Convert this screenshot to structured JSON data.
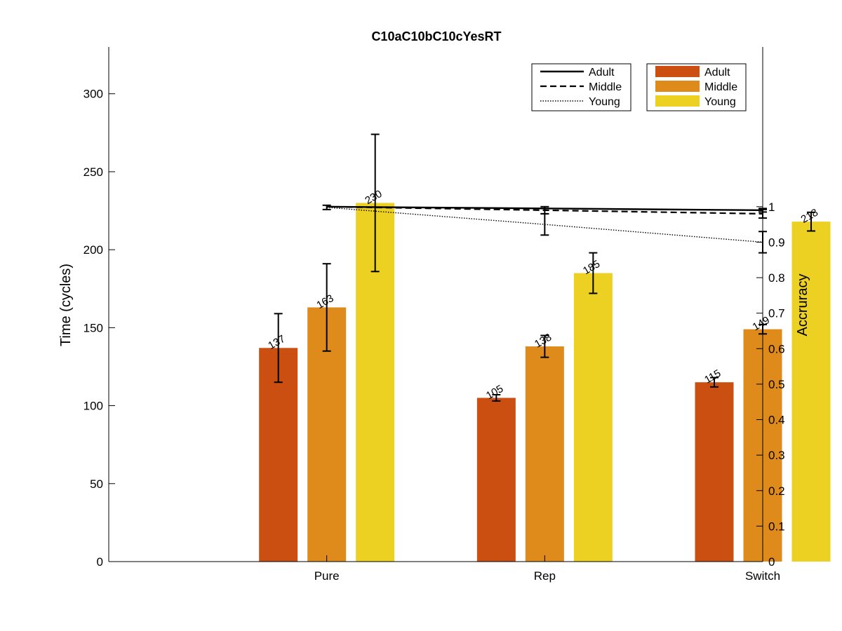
{
  "chart_data": {
    "type": "bar",
    "title": "C10aC10bC10cYesRT",
    "categories": [
      "Pure",
      "Rep",
      "Switch"
    ],
    "ylabel_left": "Time (cycles)",
    "ylabel_right": "Accruracy",
    "ylim_left": [
      0,
      330
    ],
    "ylim_right": [
      0,
      1.45
    ],
    "yticks_left": [
      "0",
      "50",
      "100",
      "150",
      "200",
      "250",
      "300"
    ],
    "yticks_right": [
      "0",
      "0.1",
      "0.2",
      "0.3",
      "0.4",
      "0.5",
      "0.6",
      "0.7",
      "0.8",
      "0.9",
      "1"
    ],
    "bar_series": [
      {
        "name": "Adult",
        "color": "#cc4f12",
        "values": [
          137,
          105,
          115
        ],
        "labels": [
          "137",
          "105",
          "115"
        ],
        "err": [
          22,
          2,
          3
        ]
      },
      {
        "name": "Middle",
        "color": "#de8b1b",
        "values": [
          163,
          138,
          149
        ],
        "labels": [
          "163",
          "138",
          "149"
        ],
        "err": [
          28,
          7,
          3
        ]
      },
      {
        "name": "Young",
        "color": "#ecd022",
        "values": [
          230,
          185,
          218
        ],
        "labels": [
          "230",
          "185",
          "218"
        ],
        "err": [
          44,
          13,
          6
        ]
      }
    ],
    "line_series": [
      {
        "name": "Adult",
        "style": "solid",
        "values": [
          1.0,
          0.995,
          0.99
        ],
        "err": [
          0.003,
          0.004,
          0.005
        ]
      },
      {
        "name": "Middle",
        "style": "dashed",
        "values": [
          1.0,
          0.99,
          0.98
        ],
        "err": [
          0.004,
          0.01,
          0.012
        ]
      },
      {
        "name": "Young",
        "style": "dotted",
        "values": [
          0.998,
          0.95,
          0.9
        ],
        "err": [
          0.006,
          0.03,
          0.03
        ]
      }
    ],
    "legend_lines": [
      "Adult",
      "Middle",
      "Young"
    ],
    "legend_bars": [
      "Adult",
      "Middle",
      "Young"
    ],
    "legend_position": "top-right",
    "grid": false
  }
}
